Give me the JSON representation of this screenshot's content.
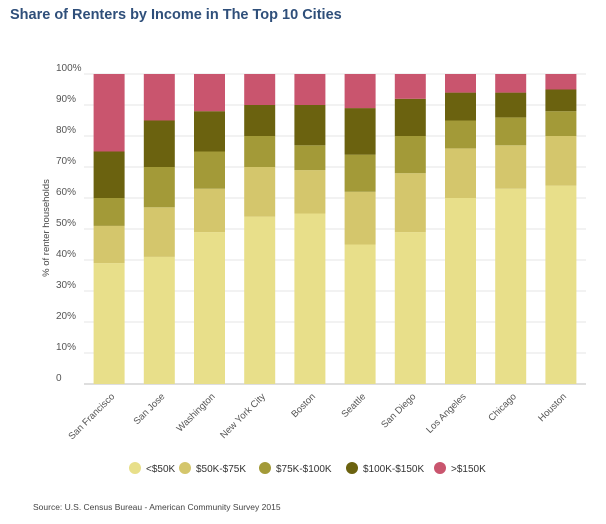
{
  "header": {
    "title": "Share of Renters by Income in The Top 10 Cities",
    "source": "Source: U.S. Census Bureau - American Community Survey 2015"
  },
  "chart_data": {
    "type": "bar",
    "stacked": true,
    "title": "Share of Renters by Income in The Top 10 Cities",
    "xlabel": "",
    "ylabel": "% of renter households",
    "ylim": [
      0,
      100
    ],
    "yticks": [
      "0",
      "10%",
      "20%",
      "30%",
      "40%",
      "50%",
      "60%",
      "70%",
      "80%",
      "90%",
      "100%"
    ],
    "categories": [
      "San Francisco",
      "San Jose",
      "Washington",
      "New York City",
      "Boston",
      "Seattle",
      "San Diego",
      "Los Angeles",
      "Chicago",
      "Houston"
    ],
    "series": [
      {
        "name": "<$50K",
        "color": "#e8df8a",
        "values": [
          39,
          41,
          49,
          54,
          55,
          45,
          49,
          60,
          63,
          64
        ]
      },
      {
        "name": "$50K-$75K",
        "color": "#d4c66c",
        "values": [
          12,
          16,
          14,
          16,
          14,
          17,
          19,
          16,
          14,
          16
        ]
      },
      {
        "name": "$75K-$100K",
        "color": "#a39a38",
        "values": [
          9,
          13,
          12,
          10,
          8,
          12,
          12,
          9,
          9,
          8
        ]
      },
      {
        "name": "$100K-$150K",
        "color": "#6b620f",
        "values": [
          15,
          15,
          13,
          10,
          13,
          15,
          12,
          9,
          8,
          7
        ]
      },
      {
        "name": ">$150K",
        "color": "#c9556e",
        "values": [
          25,
          15,
          12,
          10,
          10,
          11,
          8,
          6,
          6,
          5
        ]
      }
    ],
    "grid": true,
    "legend_position": "bottom"
  }
}
